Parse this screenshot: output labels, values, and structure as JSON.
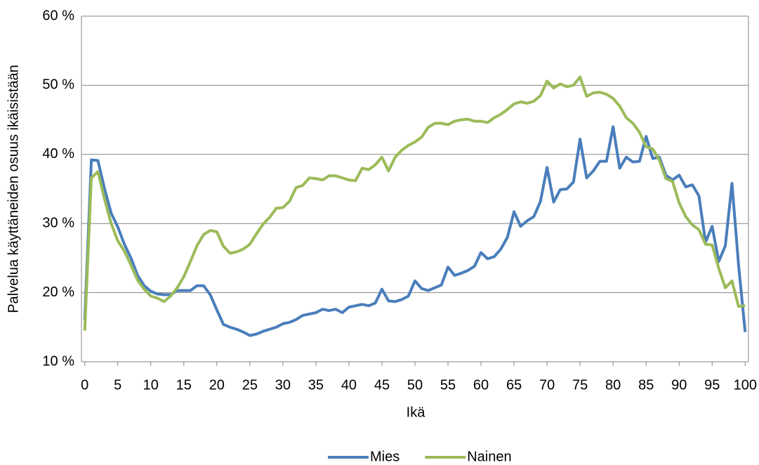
{
  "chart_data": {
    "type": "line",
    "x_label": "Ikä",
    "y_label": "Palvelua käyttäneiden osuus ikäisistään",
    "x": [
      0,
      1,
      2,
      3,
      4,
      5,
      6,
      7,
      8,
      9,
      10,
      11,
      12,
      13,
      14,
      15,
      16,
      17,
      18,
      19,
      20,
      21,
      22,
      23,
      24,
      25,
      26,
      27,
      28,
      29,
      30,
      31,
      32,
      33,
      34,
      35,
      36,
      37,
      38,
      39,
      40,
      41,
      42,
      43,
      44,
      45,
      46,
      47,
      48,
      49,
      50,
      51,
      52,
      53,
      54,
      55,
      56,
      57,
      58,
      59,
      60,
      61,
      62,
      63,
      64,
      65,
      66,
      67,
      68,
      69,
      70,
      71,
      72,
      73,
      74,
      75,
      76,
      77,
      78,
      79,
      80,
      81,
      82,
      83,
      84,
      85,
      86,
      87,
      88,
      89,
      90,
      91,
      92,
      93,
      94,
      95,
      96,
      97,
      98,
      99,
      100
    ],
    "series": [
      {
        "name": "Mies",
        "color": "#4a7ebb",
        "values": [
          16,
          39.2,
          39.1,
          35,
          31.5,
          29.5,
          27,
          25,
          22.5,
          21,
          20.2,
          19.8,
          19.7,
          19.7,
          20.3,
          20.3,
          20.3,
          21,
          21,
          19.7,
          17.5,
          15.4,
          15,
          14.7,
          14.3,
          13.8,
          14,
          14.4,
          14.7,
          15,
          15.5,
          15.7,
          16.1,
          16.7,
          16.9,
          17.1,
          17.6,
          17.4,
          17.6,
          17.1,
          17.9,
          18.1,
          18.3,
          18.1,
          18.5,
          20.5,
          18.8,
          18.7,
          19,
          19.5,
          21.7,
          20.6,
          20.3,
          20.7,
          21.1,
          23.7,
          22.5,
          22.8,
          23.2,
          23.8,
          25.8,
          24.9,
          25.2,
          26.3,
          28,
          31.7,
          29.6,
          30.4,
          31,
          33.2,
          38.1,
          33.1,
          34.9,
          35,
          36,
          42.2,
          36.6,
          37.6,
          39,
          39,
          44,
          38,
          39.6,
          38.9,
          39,
          42.6,
          39.4,
          39.6,
          37,
          36.3,
          37,
          35.3,
          35.6,
          34,
          27.3,
          29.6,
          24.5,
          26.8,
          35.8,
          24,
          14.3
        ]
      },
      {
        "name": "Nainen",
        "color": "#9bbb59",
        "values": [
          14.5,
          36.6,
          37.5,
          33.5,
          30,
          27.5,
          26,
          24,
          21.8,
          20.5,
          19.5,
          19.2,
          18.7,
          19.5,
          20.7,
          22.3,
          24.5,
          26.8,
          28.4,
          29,
          28.8,
          26.7,
          25.7,
          25.9,
          26.3,
          27,
          28.5,
          29.9,
          30.9,
          32.2,
          32.3,
          33.2,
          35.2,
          35.5,
          36.6,
          36.5,
          36.3,
          36.9,
          36.9,
          36.6,
          36.3,
          36.2,
          38,
          37.8,
          38.5,
          39.6,
          37.6,
          39.6,
          40.6,
          41.3,
          41.8,
          42.5,
          43.9,
          44.5,
          44.5,
          44.3,
          44.8,
          45,
          45.1,
          44.8,
          44.8,
          44.6,
          45.3,
          45.8,
          46.5,
          47.3,
          47.6,
          47.4,
          47.7,
          48.5,
          50.6,
          49.6,
          50.2,
          49.8,
          50,
          51.2,
          48.4,
          48.9,
          49,
          48.7,
          48.1,
          47,
          45.3,
          44.5,
          43.2,
          41.1,
          40.8,
          39.2,
          36.5,
          36.1,
          33,
          31,
          29.8,
          29.1,
          27,
          26.9,
          23.5,
          20.7,
          21.7,
          18,
          18.1
        ]
      }
    ],
    "xlim": [
      -0.5,
      100.5
    ],
    "xticks": [
      0,
      5,
      10,
      15,
      20,
      25,
      30,
      35,
      40,
      45,
      50,
      55,
      60,
      65,
      70,
      75,
      80,
      85,
      90,
      95,
      100
    ],
    "ylim": [
      10,
      60
    ],
    "yticks": [
      {
        "value": 10,
        "label": "10 %"
      },
      {
        "value": 20,
        "label": "20 %"
      },
      {
        "value": 30,
        "label": "30 %"
      },
      {
        "value": 40,
        "label": "40 %"
      },
      {
        "value": 50,
        "label": "50 %"
      },
      {
        "value": 60,
        "label": "60 %"
      }
    ],
    "grid": true,
    "legend": "bottom"
  }
}
